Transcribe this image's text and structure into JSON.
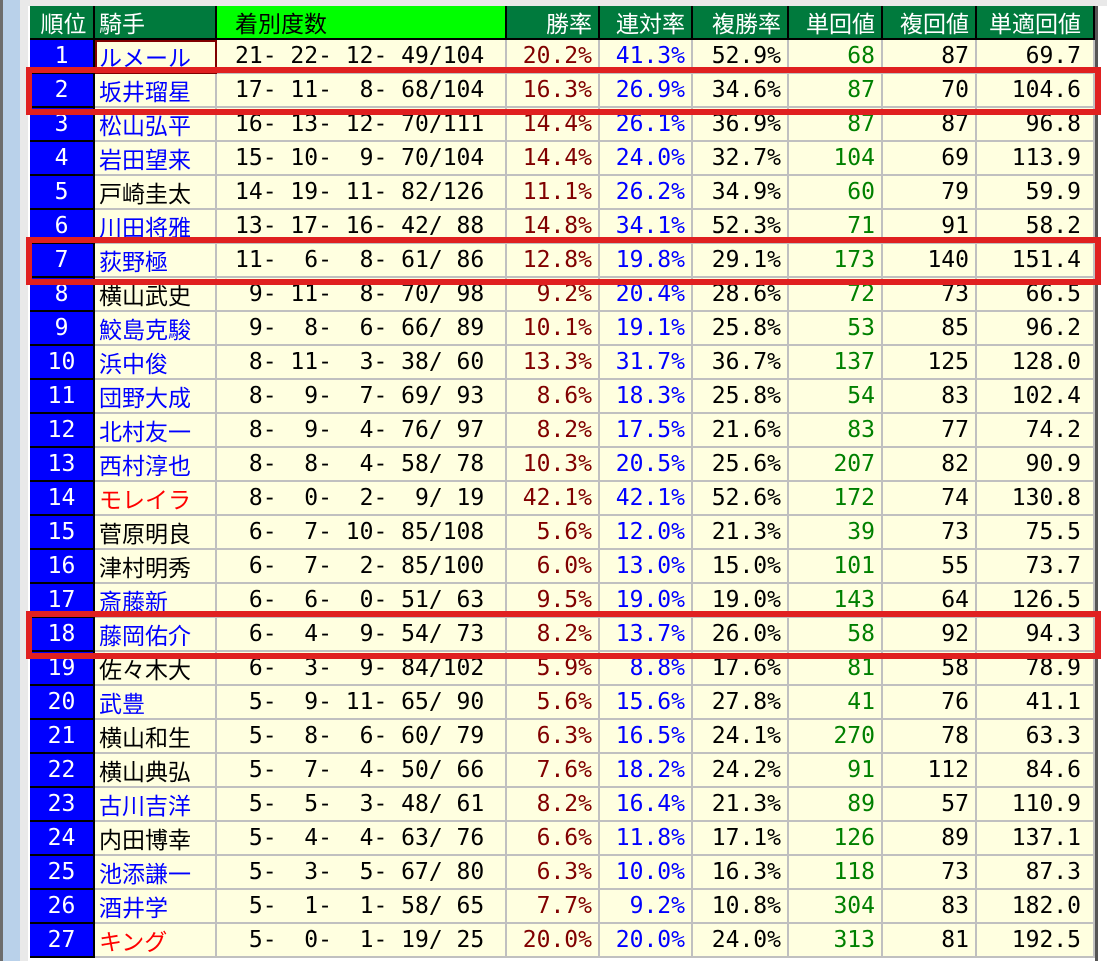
{
  "colors": {
    "header_bg": "#007a3d",
    "record_header_bg": "#00ff00",
    "rank_bg": "#0000ff",
    "cell_bg": "#ffffe0",
    "win_rate": "#800000",
    "place_rate": "#0000ff",
    "win_return": "#008000",
    "highlight": "#e02020"
  },
  "headers": [
    "順位",
    "騎手",
    "着別度数",
    "勝率",
    "連対率",
    "複勝率",
    "単回値",
    "複回値",
    "単適回値"
  ],
  "rows": [
    {
      "rank": "1",
      "name": "ルメール",
      "name_color": "#0000ff",
      "record": "21- 22- 12- 49/104",
      "win": "20.2%",
      "ren": "41.3%",
      "fuku": "52.9%",
      "tan": "68",
      "fukukai": "87",
      "tanteki": "69.7",
      "selected": true
    },
    {
      "rank": "2",
      "name": "坂井瑠星",
      "name_color": "#0000ff",
      "record": "17- 11-  8- 68/104",
      "win": "16.3%",
      "ren": "26.9%",
      "fuku": "34.6%",
      "tan": "87",
      "fukukai": "70",
      "tanteki": "104.6",
      "highlighted": true
    },
    {
      "rank": "3",
      "name": "松山弘平",
      "name_color": "#0000ff",
      "record": "16- 13- 12- 70/111",
      "win": "14.4%",
      "ren": "26.1%",
      "fuku": "36.9%",
      "tan": "87",
      "fukukai": "87",
      "tanteki": "96.8"
    },
    {
      "rank": "4",
      "name": "岩田望来",
      "name_color": "#0000ff",
      "record": "15- 10-  9- 70/104",
      "win": "14.4%",
      "ren": "24.0%",
      "fuku": "32.7%",
      "tan": "104",
      "fukukai": "69",
      "tanteki": "113.9"
    },
    {
      "rank": "5",
      "name": "戸崎圭太",
      "name_color": "#000000",
      "record": "14- 19- 11- 82/126",
      "win": "11.1%",
      "ren": "26.2%",
      "fuku": "34.9%",
      "tan": "60",
      "fukukai": "79",
      "tanteki": "59.9"
    },
    {
      "rank": "6",
      "name": "川田将雅",
      "name_color": "#0000ff",
      "record": "13- 17- 16- 42/ 88",
      "win": "14.8%",
      "ren": "34.1%",
      "fuku": "52.3%",
      "tan": "71",
      "fukukai": "91",
      "tanteki": "58.2"
    },
    {
      "rank": "7",
      "name": "荻野極",
      "name_color": "#0000ff",
      "record": "11-  6-  8- 61/ 86",
      "win": "12.8%",
      "ren": "19.8%",
      "fuku": "29.1%",
      "tan": "173",
      "fukukai": "140",
      "tanteki": "151.4",
      "highlighted": true
    },
    {
      "rank": "8",
      "name": "横山武史",
      "name_color": "#000000",
      "record": " 9- 11-  8- 70/ 98",
      "win": "9.2%",
      "ren": "20.4%",
      "fuku": "28.6%",
      "tan": "72",
      "fukukai": "73",
      "tanteki": "66.5"
    },
    {
      "rank": "9",
      "name": "鮫島克駿",
      "name_color": "#0000ff",
      "record": " 9-  8-  6- 66/ 89",
      "win": "10.1%",
      "ren": "19.1%",
      "fuku": "25.8%",
      "tan": "53",
      "fukukai": "85",
      "tanteki": "96.2"
    },
    {
      "rank": "10",
      "name": "浜中俊",
      "name_color": "#0000ff",
      "record": " 8- 11-  3- 38/ 60",
      "win": "13.3%",
      "ren": "31.7%",
      "fuku": "36.7%",
      "tan": "137",
      "fukukai": "125",
      "tanteki": "128.0"
    },
    {
      "rank": "11",
      "name": "団野大成",
      "name_color": "#0000ff",
      "record": " 8-  9-  7- 69/ 93",
      "win": "8.6%",
      "ren": "18.3%",
      "fuku": "25.8%",
      "tan": "54",
      "fukukai": "83",
      "tanteki": "102.4"
    },
    {
      "rank": "12",
      "name": "北村友一",
      "name_color": "#0000ff",
      "record": " 8-  9-  4- 76/ 97",
      "win": "8.2%",
      "ren": "17.5%",
      "fuku": "21.6%",
      "tan": "83",
      "fukukai": "77",
      "tanteki": "74.2"
    },
    {
      "rank": "13",
      "name": "西村淳也",
      "name_color": "#0000ff",
      "record": " 8-  8-  4- 58/ 78",
      "win": "10.3%",
      "ren": "20.5%",
      "fuku": "25.6%",
      "tan": "207",
      "fukukai": "82",
      "tanteki": "90.9"
    },
    {
      "rank": "14",
      "name": "モレイラ",
      "name_color": "#ff0000",
      "record": " 8-  0-  2-  9/ 19",
      "win": "42.1%",
      "ren": "42.1%",
      "fuku": "52.6%",
      "tan": "172",
      "fukukai": "74",
      "tanteki": "130.8"
    },
    {
      "rank": "15",
      "name": "菅原明良",
      "name_color": "#000000",
      "record": " 6-  7- 10- 85/108",
      "win": "5.6%",
      "ren": "12.0%",
      "fuku": "21.3%",
      "tan": "39",
      "fukukai": "73",
      "tanteki": "75.5"
    },
    {
      "rank": "16",
      "name": "津村明秀",
      "name_color": "#000000",
      "record": " 6-  7-  2- 85/100",
      "win": "6.0%",
      "ren": "13.0%",
      "fuku": "15.0%",
      "tan": "101",
      "fukukai": "55",
      "tanteki": "73.7"
    },
    {
      "rank": "17",
      "name": "斎藤新",
      "name_color": "#0000ff",
      "record": " 6-  6-  0- 51/ 63",
      "win": "9.5%",
      "ren": "19.0%",
      "fuku": "19.0%",
      "tan": "143",
      "fukukai": "64",
      "tanteki": "126.5"
    },
    {
      "rank": "18",
      "name": "藤岡佑介",
      "name_color": "#0000ff",
      "record": " 6-  4-  9- 54/ 73",
      "win": "8.2%",
      "ren": "13.7%",
      "fuku": "26.0%",
      "tan": "58",
      "fukukai": "92",
      "tanteki": "94.3",
      "highlighted": true
    },
    {
      "rank": "19",
      "name": "佐々木大",
      "name_color": "#000000",
      "record": " 6-  3-  9- 84/102",
      "win": "5.9%",
      "ren": "8.8%",
      "fuku": "17.6%",
      "tan": "81",
      "fukukai": "58",
      "tanteki": "78.9"
    },
    {
      "rank": "20",
      "name": "武豊",
      "name_color": "#0000ff",
      "record": " 5-  9- 11- 65/ 90",
      "win": "5.6%",
      "ren": "15.6%",
      "fuku": "27.8%",
      "tan": "41",
      "fukukai": "76",
      "tanteki": "41.1"
    },
    {
      "rank": "21",
      "name": "横山和生",
      "name_color": "#000000",
      "record": " 5-  8-  6- 60/ 79",
      "win": "6.3%",
      "ren": "16.5%",
      "fuku": "24.1%",
      "tan": "270",
      "fukukai": "78",
      "tanteki": "63.3"
    },
    {
      "rank": "22",
      "name": "横山典弘",
      "name_color": "#000000",
      "record": " 5-  7-  4- 50/ 66",
      "win": "7.6%",
      "ren": "18.2%",
      "fuku": "24.2%",
      "tan": "91",
      "fukukai": "112",
      "tanteki": "84.6"
    },
    {
      "rank": "23",
      "name": "古川吉洋",
      "name_color": "#0000ff",
      "record": " 5-  5-  3- 48/ 61",
      "win": "8.2%",
      "ren": "16.4%",
      "fuku": "21.3%",
      "tan": "89",
      "fukukai": "57",
      "tanteki": "110.9"
    },
    {
      "rank": "24",
      "name": "内田博幸",
      "name_color": "#000000",
      "record": " 5-  4-  4- 63/ 76",
      "win": "6.6%",
      "ren": "11.8%",
      "fuku": "17.1%",
      "tan": "126",
      "fukukai": "89",
      "tanteki": "137.1"
    },
    {
      "rank": "25",
      "name": "池添謙一",
      "name_color": "#0000ff",
      "record": " 5-  3-  5- 67/ 80",
      "win": "6.3%",
      "ren": "10.0%",
      "fuku": "16.3%",
      "tan": "118",
      "fukukai": "73",
      "tanteki": "87.3"
    },
    {
      "rank": "26",
      "name": "酒井学",
      "name_color": "#0000ff",
      "record": " 5-  1-  1- 58/ 65",
      "win": "7.7%",
      "ren": "9.2%",
      "fuku": "10.8%",
      "tan": "304",
      "fukukai": "83",
      "tanteki": "182.0"
    },
    {
      "rank": "27",
      "name": "キング",
      "name_color": "#ff0000",
      "record": " 5-  0-  1- 19/ 25",
      "win": "20.0%",
      "ren": "20.0%",
      "fuku": "24.0%",
      "tan": "313",
      "fukukai": "81",
      "tanteki": "192.5"
    }
  ]
}
